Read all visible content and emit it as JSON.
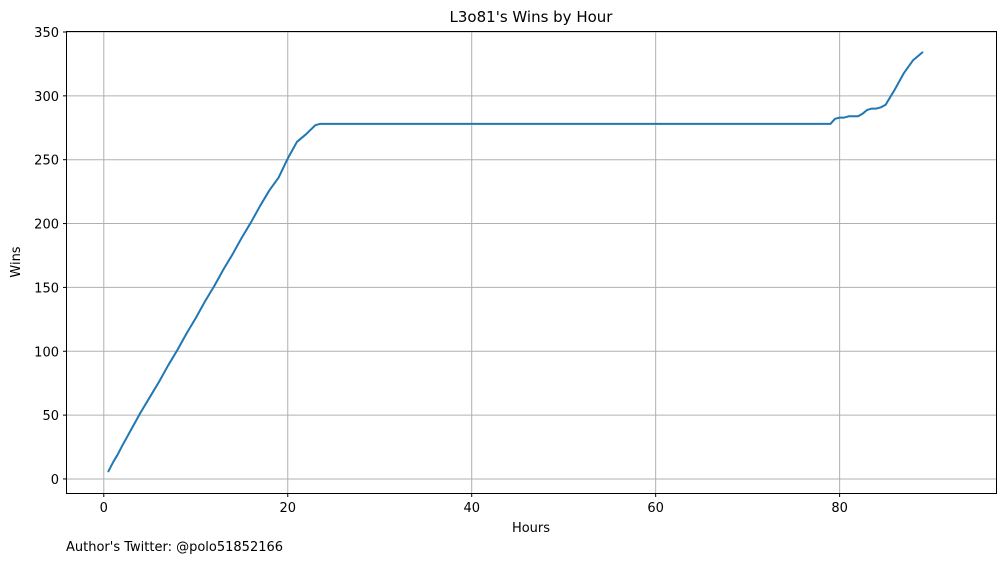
{
  "chart_data": {
    "type": "line",
    "title": "L3o81's Wins by Hour",
    "xlabel": "Hours",
    "ylabel": "Wins",
    "xlim": [
      -4,
      97
    ],
    "ylim": [
      -11,
      350
    ],
    "xticks": [
      0,
      20,
      40,
      60,
      80
    ],
    "yticks": [
      0,
      50,
      100,
      150,
      200,
      250,
      300,
      350
    ],
    "grid": true,
    "series": [
      {
        "color": "#1f77b4",
        "x": [
          0.5,
          1.0,
          1.5,
          2.0,
          3.0,
          4.0,
          5.0,
          6.0,
          7.0,
          8.0,
          9.0,
          10.0,
          11.0,
          12.0,
          13.0,
          14.0,
          15.0,
          16.0,
          17.0,
          18.0,
          19.0,
          20.0,
          21.0,
          22.0,
          23.0,
          23.5,
          24.0,
          79.0,
          79.5,
          80.0,
          80.5,
          81.0,
          82.0,
          82.5,
          83.0,
          83.5,
          84.0,
          84.5,
          85.0,
          86.0,
          87.0,
          88.0,
          89.0
        ],
        "y": [
          6,
          13,
          19,
          26,
          39,
          52,
          64,
          76,
          89,
          101,
          114,
          126,
          139,
          151,
          164,
          176,
          189,
          201,
          214,
          226,
          236,
          251,
          264,
          270,
          277,
          278,
          278,
          278,
          282,
          283,
          283,
          284,
          284,
          286,
          289,
          290,
          290,
          291,
          293,
          305,
          318,
          328,
          334
        ]
      }
    ]
  },
  "footnote": "Author's Twitter: @polo51852166"
}
